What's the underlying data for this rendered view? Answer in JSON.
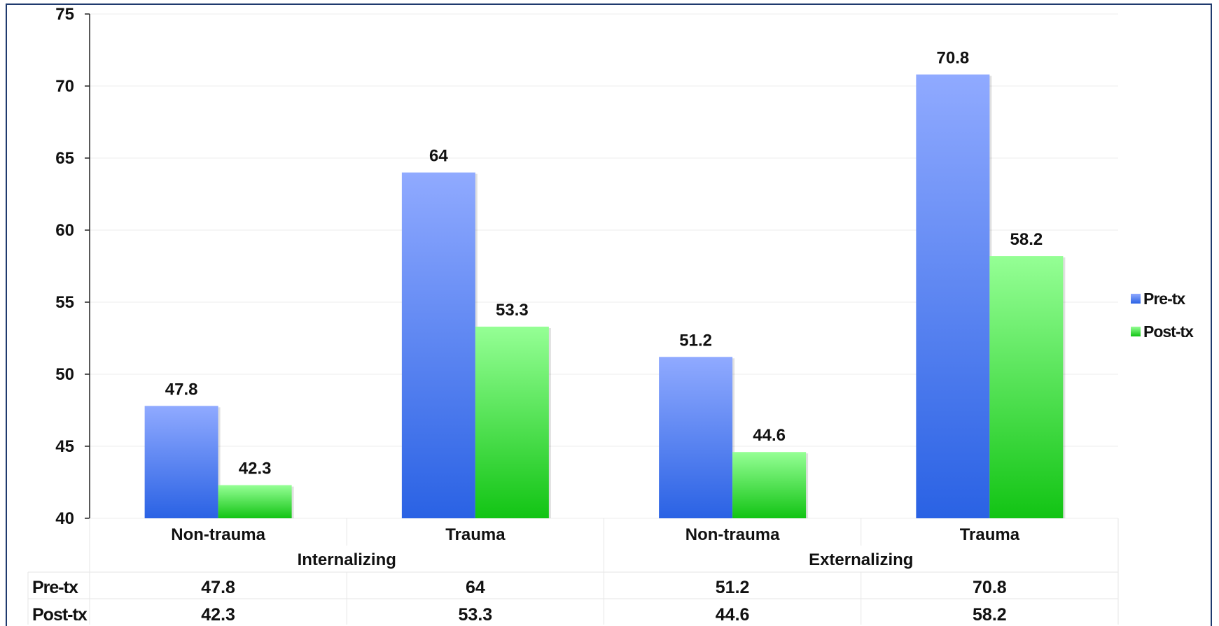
{
  "chart_data": {
    "type": "bar",
    "groups": [
      {
        "label": "Internalizing",
        "categories": [
          "Non-trauma",
          "Trauma"
        ]
      },
      {
        "label": "Externalizing",
        "categories": [
          "Non-trauma",
          "Trauma"
        ]
      }
    ],
    "categories": [
      "Non-trauma",
      "Trauma",
      "Non-trauma",
      "Trauma"
    ],
    "series": [
      {
        "name": "Pre-tx",
        "values": [
          47.8,
          64,
          51.2,
          70.8
        ],
        "labels": [
          "47.8",
          "64",
          "51.2",
          "70.8"
        ],
        "color": "#2a62e4",
        "color_top": "#90aaff"
      },
      {
        "name": "Post-tx",
        "values": [
          42.3,
          53.3,
          44.6,
          58.2
        ],
        "labels": [
          "42.3",
          "53.3",
          "44.6",
          "58.2"
        ],
        "color": "#12c414",
        "color_top": "#95ff95"
      }
    ],
    "ylim": [
      40,
      75
    ],
    "yticks": [
      "40",
      "45",
      "50",
      "55",
      "60",
      "65",
      "70",
      "75"
    ],
    "grid": true,
    "legend": "right",
    "data_table": true
  }
}
